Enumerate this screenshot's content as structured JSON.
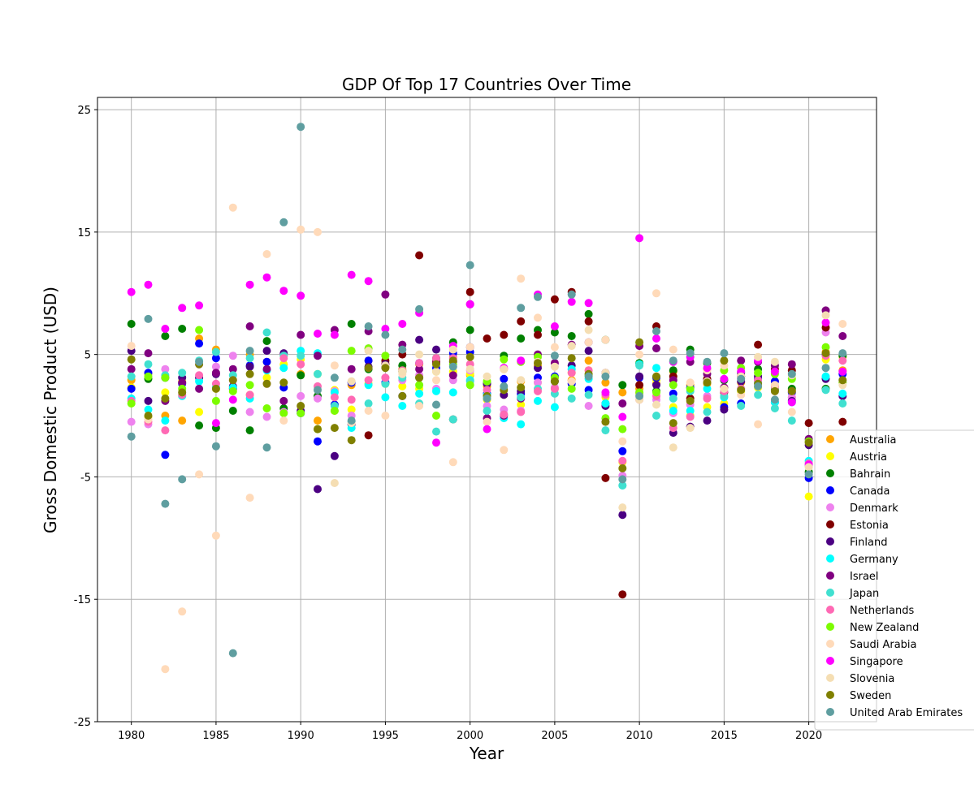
{
  "chart_data": {
    "type": "scatter",
    "title": "GDP Of Top 17 Countries Over Time",
    "xlabel": "Year",
    "ylabel": "Gross Domestic Product (USD)",
    "xlim": [
      1978,
      2024
    ],
    "ylim": [
      -25,
      26
    ],
    "xticks": [
      1980,
      1985,
      1990,
      1995,
      2000,
      2005,
      2010,
      2015,
      2020
    ],
    "yticks": [
      -25,
      -15,
      -5,
      5,
      15,
      25
    ],
    "grid": true,
    "legend_position": "lower-right",
    "x": [
      1980,
      1981,
      1982,
      1983,
      1984,
      1985,
      1986,
      1987,
      1988,
      1989,
      1990,
      1991,
      1992,
      1993,
      1994,
      1995,
      1996,
      1997,
      1998,
      1999,
      2000,
      2001,
      2002,
      2003,
      2004,
      2005,
      2006,
      2007,
      2008,
      2009,
      2010,
      2011,
      2012,
      2013,
      2014,
      2015,
      2016,
      2017,
      2018,
      2019,
      2020,
      2021,
      2022
    ],
    "series": [
      {
        "name": "Australia",
        "color": "#ffa500",
        "values": [
          2.9,
          3.4,
          0.0,
          -0.4,
          6.3,
          5.4,
          2.2,
          5.0,
          4.4,
          4.9,
          3.4,
          -0.4,
          0.4,
          2.5,
          4.5,
          4.3,
          3.8,
          4.2,
          4.4,
          4.8,
          3.3,
          2.4,
          3.8,
          2.8,
          4.1,
          3.1,
          2.9,
          4.5,
          2.7,
          1.9,
          2.2,
          2.6,
          3.6,
          2.5,
          2.6,
          2.3,
          2.7,
          2.4,
          2.8,
          2.1,
          -2.1,
          5.2,
          3.7
        ]
      },
      {
        "name": "Austria",
        "color": "#ffff00",
        "values": [
          2.3,
          -0.1,
          1.9,
          2.8,
          0.3,
          2.2,
          2.3,
          1.7,
          3.1,
          4.2,
          4.6,
          3.4,
          2.1,
          0.5,
          2.6,
          2.6,
          2.4,
          2.2,
          3.6,
          3.6,
          3.4,
          1.3,
          1.7,
          0.9,
          2.7,
          2.2,
          3.5,
          3.7,
          1.5,
          -3.8,
          1.8,
          2.9,
          0.7,
          0.0,
          0.7,
          1.0,
          2.0,
          2.3,
          2.4,
          1.5,
          -6.6,
          4.6,
          4.8
        ]
      },
      {
        "name": "Bahrain",
        "color": "#008000",
        "values": [
          7.5,
          3.0,
          6.5,
          7.1,
          -0.8,
          -1.0,
          0.4,
          -1.2,
          6.1,
          0.6,
          3.3,
          1.6,
          0.9,
          7.5,
          3.8,
          4.0,
          4.1,
          3.1,
          4.7,
          6.0,
          7.0,
          2.6,
          4.9,
          6.3,
          7.0,
          6.8,
          6.5,
          8.3,
          6.2,
          2.5,
          4.3,
          2.0,
          3.7,
          5.4,
          4.3,
          2.9,
          3.5,
          3.8,
          2.1,
          2.2,
          -4.6,
          2.2,
          4.9
        ]
      },
      {
        "name": "Canada",
        "color": "#0000ff",
        "values": [
          2.2,
          3.5,
          -3.2,
          2.6,
          5.9,
          4.7,
          2.2,
          4.1,
          4.4,
          2.3,
          0.2,
          -2.1,
          0.9,
          2.7,
          4.5,
          2.7,
          1.6,
          4.3,
          3.9,
          5.1,
          5.2,
          1.8,
          3.0,
          1.8,
          3.1,
          3.2,
          2.6,
          2.1,
          1.0,
          -2.9,
          3.1,
          3.1,
          1.8,
          2.3,
          2.9,
          0.7,
          1.0,
          3.0,
          2.8,
          1.9,
          -5.1,
          5.0,
          3.4
        ]
      },
      {
        "name": "Denmark",
        "color": "#ee82ee",
        "values": [
          -0.5,
          -0.7,
          3.8,
          2.7,
          4.2,
          4.0,
          4.9,
          0.3,
          -0.1,
          0.3,
          1.6,
          1.4,
          2.0,
          0.0,
          5.5,
          3.1,
          2.9,
          3.3,
          2.2,
          2.9,
          3.7,
          0.8,
          0.5,
          0.4,
          2.7,
          2.3,
          3.8,
          0.8,
          -0.5,
          -4.9,
          1.9,
          1.3,
          0.2,
          0.9,
          1.6,
          2.3,
          3.2,
          2.8,
          2.0,
          1.5,
          -2.0,
          6.8,
          2.7
        ]
      },
      {
        "name": "Estonia",
        "color": "#800000",
        "values": [
          null,
          null,
          null,
          null,
          null,
          null,
          null,
          null,
          null,
          null,
          null,
          null,
          null,
          null,
          -1.6,
          4.5,
          5.0,
          13.1,
          4.4,
          -0.3,
          10.1,
          6.3,
          6.6,
          7.7,
          6.6,
          9.5,
          10.1,
          7.7,
          -5.1,
          -14.6,
          2.5,
          7.3,
          3.2,
          1.4,
          3.0,
          1.9,
          3.2,
          5.8,
          3.8,
          3.7,
          -0.6,
          7.2,
          -0.5
        ]
      },
      {
        "name": "Finland",
        "color": "#4b0082",
        "values": [
          5.3,
          1.2,
          3.1,
          3.1,
          3.1,
          3.4,
          2.4,
          4.0,
          5.3,
          5.1,
          0.4,
          -6.0,
          -3.3,
          -0.7,
          4.0,
          4.2,
          3.6,
          6.2,
          5.4,
          4.4,
          5.6,
          2.6,
          1.7,
          2.0,
          3.9,
          2.8,
          4.1,
          5.3,
          0.8,
          -8.1,
          3.2,
          2.5,
          -1.4,
          -0.9,
          -0.4,
          0.5,
          2.8,
          3.2,
          1.1,
          1.2,
          -2.4,
          3.0,
          1.6
        ]
      },
      {
        "name": "Germany",
        "color": "#00ffff",
        "values": [
          1.4,
          0.5,
          -0.4,
          1.6,
          2.8,
          2.3,
          2.3,
          1.4,
          3.7,
          3.9,
          5.3,
          5.1,
          1.9,
          -1.0,
          2.5,
          1.5,
          0.8,
          1.8,
          2.0,
          1.9,
          2.9,
          1.7,
          -0.2,
          -0.7,
          1.2,
          0.7,
          3.8,
          3.0,
          1.0,
          -5.7,
          4.2,
          3.9,
          0.4,
          0.4,
          2.2,
          1.5,
          2.2,
          2.7,
          1.1,
          1.1,
          -3.7,
          3.2,
          1.8
        ]
      },
      {
        "name": "Israel",
        "color": "#800080",
        "values": [
          3.8,
          5.1,
          1.2,
          2.7,
          2.2,
          3.5,
          3.8,
          7.3,
          3.8,
          1.2,
          6.6,
          4.9,
          7.0,
          3.8,
          6.9,
          9.9,
          5.8,
          3.8,
          4.3,
          3.3,
          9.1,
          -0.2,
          0.0,
          1.4,
          5.0,
          4.3,
          5.8,
          6.0,
          3.5,
          1.0,
          5.7,
          5.5,
          2.9,
          4.4,
          3.4,
          2.3,
          4.5,
          4.4,
          4.1,
          4.2,
          -1.9,
          8.6,
          6.5
        ]
      },
      {
        "name": "Japan",
        "color": "#40e0d0",
        "values": [
          3.2,
          4.2,
          3.3,
          3.5,
          4.5,
          5.2,
          3.3,
          4.7,
          6.8,
          4.9,
          4.9,
          3.4,
          0.8,
          -0.5,
          1.0,
          2.6,
          3.1,
          1.0,
          -1.3,
          -0.3,
          2.8,
          0.4,
          0.1,
          1.5,
          2.2,
          1.8,
          1.4,
          1.7,
          -1.2,
          -5.7,
          4.1,
          0.0,
          1.4,
          2.0,
          0.3,
          1.6,
          0.8,
          1.7,
          0.6,
          -0.4,
          -4.1,
          2.1,
          1.0
        ]
      },
      {
        "name": "Netherlands",
        "color": "#ff69b4",
        "values": [
          1.2,
          -0.5,
          -1.2,
          1.7,
          3.3,
          2.6,
          2.9,
          1.7,
          2.6,
          4.7,
          4.2,
          2.4,
          1.5,
          1.3,
          2.9,
          3.1,
          3.7,
          4.3,
          4.7,
          4.7,
          4.2,
          2.1,
          0.1,
          0.3,
          2.0,
          2.2,
          3.5,
          3.7,
          1.7,
          -3.7,
          1.3,
          1.6,
          -1.0,
          -0.1,
          1.4,
          2.0,
          2.2,
          2.9,
          2.4,
          2.0,
          -3.9,
          4.9,
          4.5
        ]
      },
      {
        "name": "New Zealand",
        "color": "#7cfc00",
        "values": [
          1.0,
          3.2,
          3.1,
          2.2,
          7.0,
          1.2,
          2.0,
          2.5,
          0.6,
          0.2,
          0.2,
          -1.1,
          0.4,
          5.3,
          5.5,
          4.9,
          3.6,
          2.5,
          0.0,
          4.2,
          2.5,
          2.8,
          4.6,
          4.4,
          4.8,
          3.1,
          2.2,
          3.3,
          -0.2,
          -1.1,
          1.9,
          1.9,
          2.5,
          2.2,
          3.8,
          3.7,
          3.9,
          3.5,
          3.4,
          3.0,
          -2.1,
          5.6,
          2.7
        ]
      },
      {
        "name": "Saudi Arabia",
        "color": "#ffdab9",
        "values": [
          5.7,
          -0.3,
          -20.7,
          -16.0,
          -4.8,
          -9.8,
          17.0,
          -6.7,
          13.2,
          -0.4,
          15.2,
          15.0,
          4.1,
          -0.6,
          0.4,
          0.0,
          3.4,
          0.8,
          2.9,
          -3.8,
          5.6,
          -0.5,
          -2.8,
          11.2,
          8.0,
          5.6,
          2.8,
          6.0,
          6.2,
          -2.1,
          5.0,
          10.0,
          5.4,
          2.7,
          3.7,
          4.1,
          1.7,
          -0.7,
          2.5,
          0.3,
          -4.1,
          3.9,
          7.5
        ]
      },
      {
        "name": "Singapore",
        "color": "#ff00ff",
        "values": [
          10.1,
          10.7,
          7.1,
          8.8,
          9.0,
          -0.6,
          1.3,
          10.7,
          11.3,
          10.2,
          9.8,
          6.7,
          6.6,
          11.5,
          11.0,
          7.1,
          7.5,
          8.4,
          -2.2,
          5.7,
          9.1,
          -1.1,
          3.9,
          4.5,
          9.9,
          7.3,
          9.3,
          9.2,
          1.9,
          -0.1,
          14.5,
          6.3,
          4.4,
          4.8,
          3.9,
          3.0,
          3.6,
          4.5,
          3.6,
          1.1,
          -4.0,
          7.6,
          3.6
        ]
      },
      {
        "name": "Slovenia",
        "color": "#f5deb3",
        "values": [
          null,
          null,
          null,
          null,
          null,
          null,
          null,
          null,
          null,
          null,
          null,
          null,
          -5.5,
          2.8,
          5.3,
          4.1,
          3.6,
          5.0,
          3.6,
          5.4,
          3.8,
          3.2,
          3.8,
          2.9,
          4.4,
          4.0,
          5.7,
          7.0,
          3.5,
          -7.5,
          1.3,
          0.9,
          -2.6,
          -1.0,
          2.8,
          2.2,
          3.2,
          4.8,
          4.4,
          3.3,
          -4.2,
          8.2,
          2.5
        ]
      },
      {
        "name": "Sweden",
        "color": "#808000",
        "values": [
          4.6,
          0.0,
          1.4,
          1.9,
          4.2,
          2.2,
          2.9,
          3.4,
          2.6,
          2.7,
          0.8,
          -1.1,
          -1.0,
          -2.0,
          3.9,
          3.9,
          1.6,
          3.1,
          4.2,
          4.5,
          4.8,
          1.6,
          2.1,
          2.3,
          4.3,
          2.8,
          4.7,
          3.4,
          -0.5,
          -4.3,
          6.0,
          3.2,
          -0.6,
          1.2,
          2.7,
          4.5,
          2.1,
          2.6,
          2.0,
          2.0,
          -2.2,
          5.1,
          2.9
        ]
      },
      {
        "name": "United Arab Emirates",
        "color": "#5f9ea0",
        "values": [
          -1.7,
          7.9,
          -7.2,
          -5.2,
          4.4,
          -2.5,
          -19.4,
          5.3,
          -2.6,
          15.8,
          23.6,
          2.1,
          3.1,
          -0.4,
          7.3,
          6.6,
          5.4,
          8.7,
          0.9,
          4.0,
          12.3,
          1.4,
          2.4,
          8.8,
          9.7,
          4.9,
          9.9,
          3.2,
          3.2,
          -5.2,
          1.6,
          6.9,
          4.5,
          5.1,
          4.4,
          5.1,
          3.0,
          2.4,
          1.3,
          3.4,
          -4.8,
          3.9,
          5.1
        ]
      }
    ]
  }
}
